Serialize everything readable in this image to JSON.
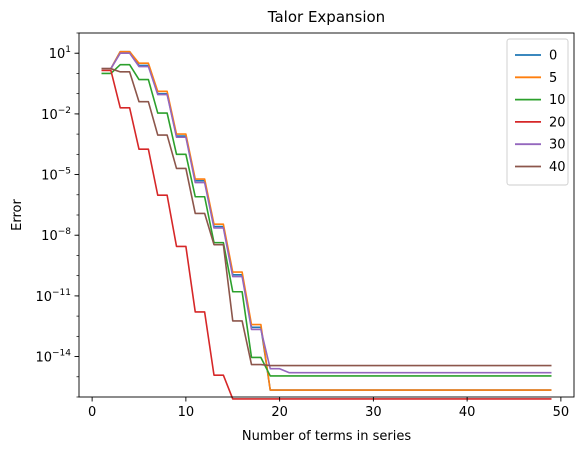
{
  "chart_data": {
    "type": "line",
    "title": "Talor Expansion",
    "xlabel": "Number of terms in series",
    "ylabel": "Error",
    "yscale": "log",
    "xlim": [
      -1.4,
      51.4
    ],
    "ylim": [
      1e-16,
      100.0
    ],
    "xticks": [
      0,
      10,
      20,
      30,
      40,
      50
    ],
    "yticks": [
      {
        "value": 10.0,
        "base": "10",
        "exp": "1"
      },
      {
        "value": 0.01,
        "base": "10",
        "exp": "−2"
      },
      {
        "value": 1e-05,
        "base": "10",
        "exp": "−5"
      },
      {
        "value": 1e-08,
        "base": "10",
        "exp": "−8"
      },
      {
        "value": 1e-11,
        "base": "10",
        "exp": "−11"
      },
      {
        "value": 1e-14,
        "base": "10",
        "exp": "−14"
      }
    ],
    "grid": false,
    "legend_position": "top-right",
    "x": [
      1,
      2,
      3,
      4,
      5,
      6,
      7,
      8,
      9,
      10,
      11,
      12,
      13,
      14,
      15,
      16,
      17,
      18,
      19,
      20,
      21,
      22,
      23,
      24,
      25,
      26,
      27,
      28,
      29,
      30,
      31,
      32,
      33,
      34,
      35,
      36,
      37,
      38,
      39,
      40,
      41,
      42,
      43,
      44,
      45,
      46,
      47,
      48,
      49
    ],
    "series": [
      {
        "name": "0",
        "color": "#1f77b4",
        "values": [
          1.718,
          1.718,
          12.0,
          12.0,
          2.5,
          2.5,
          0.1,
          0.1,
          0.0008,
          0.0008,
          5e-06,
          5e-06,
          2.7e-08,
          2.7e-08,
          1.1e-10,
          1.1e-10,
          2.8e-13,
          2.8e-13,
          2.2e-16,
          2.2e-16,
          2.2e-16,
          2.2e-16,
          2.2e-16,
          2.2e-16,
          2.2e-16,
          2.2e-16,
          2.2e-16,
          2.2e-16,
          2.2e-16,
          2.2e-16,
          2.2e-16,
          2.2e-16,
          2.2e-16,
          2.2e-16,
          2.2e-16,
          2.2e-16,
          2.2e-16,
          2.2e-16,
          2.2e-16,
          2.2e-16,
          2.2e-16,
          2.2e-16,
          2.2e-16,
          2.2e-16,
          2.2e-16,
          2.2e-16,
          2.2e-16,
          2.2e-16,
          2.2e-16
        ]
      },
      {
        "name": "5",
        "color": "#ff7f0e",
        "values": [
          1.718,
          1.718,
          12.0,
          12.0,
          3.2,
          3.2,
          0.13,
          0.13,
          0.001,
          0.001,
          6e-06,
          6e-06,
          3.5e-08,
          3.5e-08,
          1.5e-10,
          1.5e-10,
          3.8e-13,
          3.8e-13,
          2.2e-16,
          2.2e-16,
          2.2e-16,
          2.2e-16,
          2.2e-16,
          2.2e-16,
          2.2e-16,
          2.2e-16,
          2.2e-16,
          2.2e-16,
          2.2e-16,
          2.2e-16,
          2.2e-16,
          2.2e-16,
          2.2e-16,
          2.2e-16,
          2.2e-16,
          2.2e-16,
          2.2e-16,
          2.2e-16,
          2.2e-16,
          2.2e-16,
          2.2e-16,
          2.2e-16,
          2.2e-16,
          2.2e-16,
          2.2e-16,
          2.2e-16,
          2.2e-16,
          2.2e-16,
          2.2e-16
        ]
      },
      {
        "name": "10",
        "color": "#2ca02c",
        "values": [
          1.0,
          1.0,
          2.7,
          2.7,
          0.5,
          0.5,
          0.011,
          0.011,
          0.0001,
          0.0001,
          8e-07,
          8e-07,
          4.3e-09,
          4.3e-09,
          1.6e-11,
          1.6e-11,
          9e-15,
          9e-15,
          1.1e-15,
          1.1e-15,
          1.1e-15,
          1.1e-15,
          1.1e-15,
          1.1e-15,
          1.1e-15,
          1.1e-15,
          1.1e-15,
          1.1e-15,
          1.1e-15,
          1.1e-15,
          1.1e-15,
          1.1e-15,
          1.1e-15,
          1.1e-15,
          1.1e-15,
          1.1e-15,
          1.1e-15,
          1.1e-15,
          1.1e-15,
          1.1e-15,
          1.1e-15,
          1.1e-15,
          1.1e-15,
          1.1e-15,
          1.1e-15,
          1.1e-15,
          1.1e-15,
          1.1e-15,
          1.1e-15
        ]
      },
      {
        "name": "20",
        "color": "#d62728",
        "values": [
          1.4,
          1.4,
          0.02,
          0.02,
          0.00018,
          0.00018,
          9.5e-07,
          9.5e-07,
          2.8e-09,
          2.8e-09,
          1.6e-12,
          1.6e-12,
          1.2e-15,
          1.2e-15,
          8e-17,
          8e-17,
          8e-17,
          8e-17,
          8e-17,
          8e-17,
          8e-17,
          8e-17,
          8e-17,
          8e-17,
          8e-17,
          8e-17,
          8e-17,
          8e-17,
          8e-17,
          8e-17,
          8e-17,
          8e-17,
          8e-17,
          8e-17,
          8e-17,
          8e-17,
          8e-17,
          8e-17,
          8e-17,
          8e-17,
          8e-17,
          8e-17,
          8e-17,
          8e-17,
          8e-17,
          8e-17,
          8e-17,
          8e-17,
          8e-17
        ]
      },
      {
        "name": "30",
        "color": "#9467bd",
        "values": [
          1.718,
          1.718,
          10.0,
          10.0,
          2.2,
          2.2,
          0.09,
          0.09,
          0.0007,
          0.0007,
          4e-06,
          4e-06,
          2.3e-08,
          2.3e-08,
          9e-11,
          9e-11,
          2.2e-13,
          2.2e-13,
          2.5e-15,
          2.5e-15,
          1.6e-15,
          1.6e-15,
          1.6e-15,
          1.6e-15,
          1.6e-15,
          1.6e-15,
          1.6e-15,
          1.6e-15,
          1.6e-15,
          1.6e-15,
          1.6e-15,
          1.6e-15,
          1.6e-15,
          1.6e-15,
          1.6e-15,
          1.6e-15,
          1.6e-15,
          1.6e-15,
          1.6e-15,
          1.6e-15,
          1.6e-15,
          1.6e-15,
          1.6e-15,
          1.6e-15,
          1.6e-15,
          1.6e-15,
          1.6e-15,
          1.6e-15,
          1.6e-15
        ]
      },
      {
        "name": "40",
        "color": "#8c564b",
        "values": [
          1.718,
          1.718,
          1.2,
          1.2,
          0.04,
          0.04,
          0.0009,
          0.0009,
          2e-05,
          2e-05,
          1.2e-07,
          1.2e-07,
          3.4e-09,
          3.4e-09,
          5.8e-13,
          5.8e-13,
          4e-15,
          4e-15,
          3.6e-15,
          3.6e-15,
          3.6e-15,
          3.6e-15,
          3.6e-15,
          3.6e-15,
          3.6e-15,
          3.6e-15,
          3.6e-15,
          3.6e-15,
          3.6e-15,
          3.6e-15,
          3.6e-15,
          3.6e-15,
          3.6e-15,
          3.6e-15,
          3.6e-15,
          3.6e-15,
          3.6e-15,
          3.6e-15,
          3.6e-15,
          3.6e-15,
          3.6e-15,
          3.6e-15,
          3.6e-15,
          3.6e-15,
          3.6e-15,
          3.6e-15,
          3.6e-15,
          3.6e-15,
          3.6e-15
        ]
      }
    ]
  }
}
